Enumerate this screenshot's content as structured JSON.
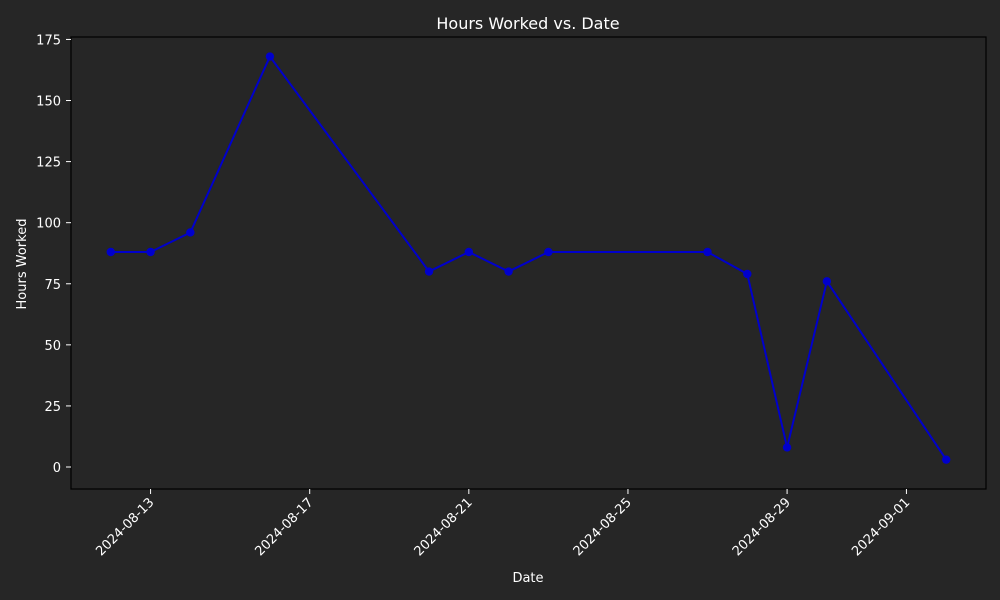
{
  "chart_data": {
    "type": "line",
    "title": "Hours Worked vs. Date",
    "xlabel": "Date",
    "ylabel": "Hours Worked",
    "x_tick_labels": [
      "2024-08-13",
      "2024-08-17",
      "2024-08-21",
      "2024-08-25",
      "2024-08-29",
      "2024-09-01"
    ],
    "y_ticks": [
      0,
      25,
      50,
      75,
      100,
      125,
      150,
      175
    ],
    "xlim": [
      "2024-08-11",
      "2024-09-03"
    ],
    "ylim": [
      -9,
      176
    ],
    "grid": false,
    "series": [
      {
        "color": "#0000cc",
        "points": [
          {
            "x": "2024-08-12",
            "y": 88
          },
          {
            "x": "2024-08-13",
            "y": 88
          },
          {
            "x": "2024-08-14",
            "y": 96
          },
          {
            "x": "2024-08-16",
            "y": 168
          },
          {
            "x": "2024-08-20",
            "y": 80
          },
          {
            "x": "2024-08-21",
            "y": 88
          },
          {
            "x": "2024-08-22",
            "y": 80
          },
          {
            "x": "2024-08-23",
            "y": 88
          },
          {
            "x": "2024-08-27",
            "y": 88
          },
          {
            "x": "2024-08-28",
            "y": 79
          },
          {
            "x": "2024-08-29",
            "y": 8
          },
          {
            "x": "2024-08-30",
            "y": 76
          },
          {
            "x": "2024-09-02",
            "y": 3
          }
        ]
      }
    ]
  },
  "colors": {
    "background": "#262626",
    "axes_edge": "#000000",
    "text": "#ffffff",
    "line": "#0000cc"
  }
}
